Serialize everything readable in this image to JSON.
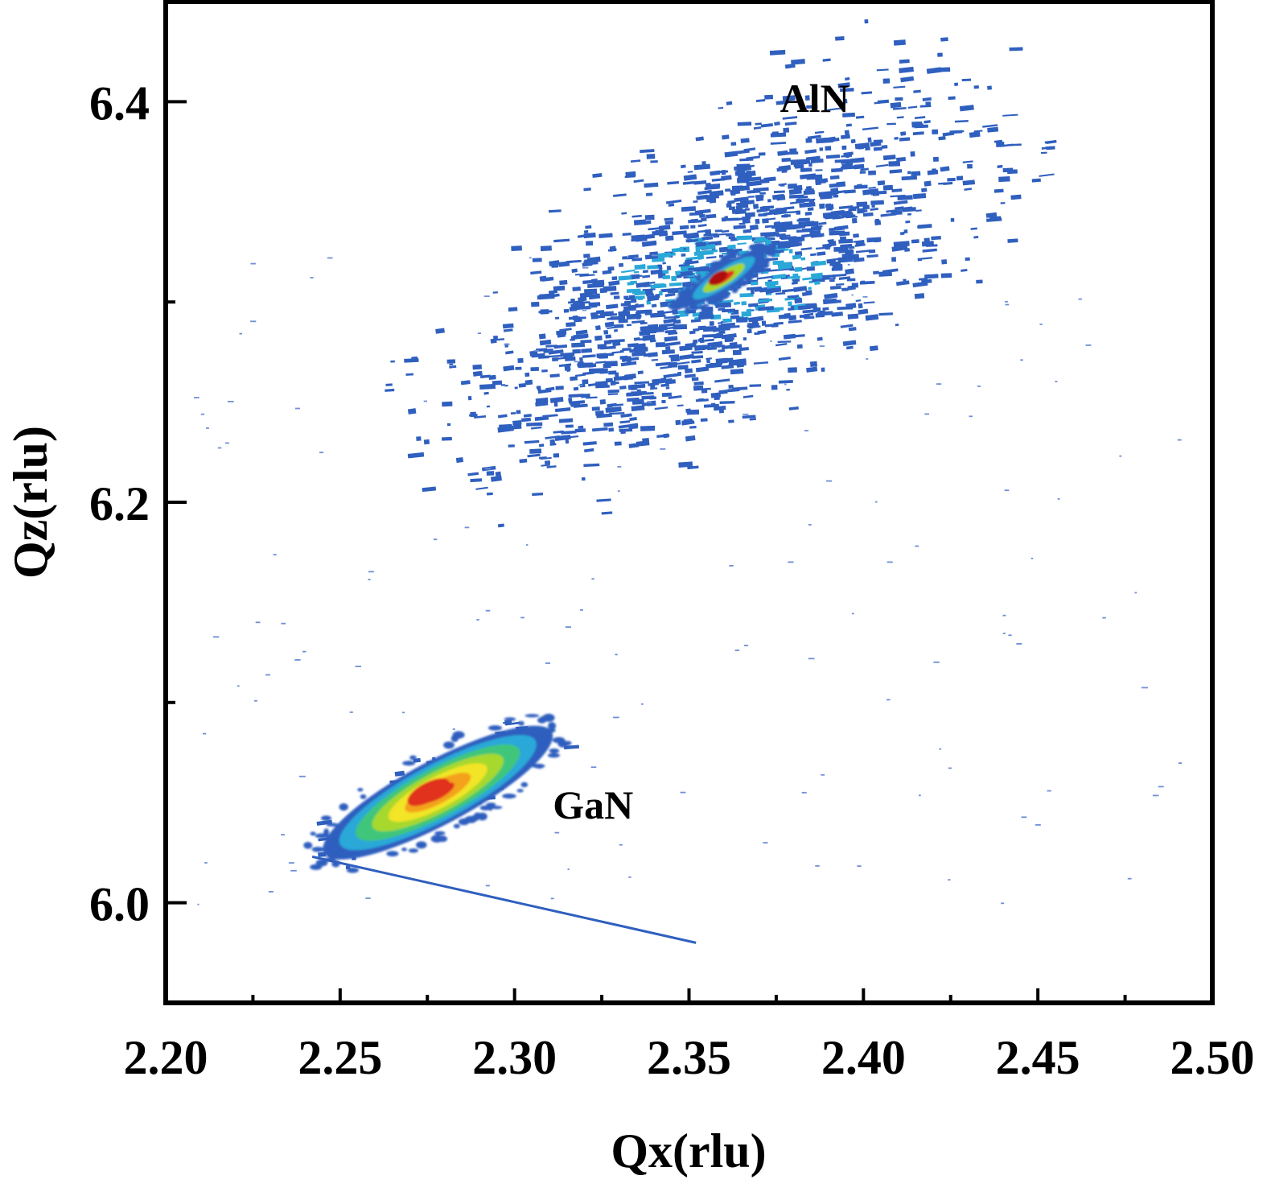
{
  "chart_data": {
    "type": "heatmap",
    "title": "",
    "xlabel": "Qx(rlu)",
    "ylabel": "Qz(rlu)",
    "xlim": [
      2.2,
      2.5
    ],
    "ylim": [
      5.95,
      6.45
    ],
    "x_ticks": [
      {
        "value": 2.2,
        "label": "2.20"
      },
      {
        "value": 2.25,
        "label": "2.25"
      },
      {
        "value": 2.3,
        "label": "2.30"
      },
      {
        "value": 2.35,
        "label": "2.35"
      },
      {
        "value": 2.4,
        "label": "2.40"
      },
      {
        "value": 2.45,
        "label": "2.45"
      },
      {
        "value": 2.5,
        "label": "2.50"
      }
    ],
    "x_minor_ticks": [
      2.225,
      2.275,
      2.325,
      2.375,
      2.425,
      2.475
    ],
    "y_ticks": [
      {
        "value": 6.0,
        "label": "6.0"
      },
      {
        "value": 6.2,
        "label": "6.2"
      },
      {
        "value": 6.4,
        "label": "6.4"
      }
    ],
    "y_minor_ticks": [
      6.1,
      6.3
    ],
    "colormap": [
      "#2f5fbf",
      "#2aa8d8",
      "#3fc67a",
      "#a6d82e",
      "#f2e428",
      "#f4a21c",
      "#e0311c",
      "#b01010"
    ],
    "peaks": [
      {
        "label": "AlN",
        "center": [
          2.36,
          6.312
        ],
        "tilt_deg": -33,
        "core_halfwidths": [
          0.014,
          0.006
        ],
        "core_levels": 4,
        "diffuse_halfwidths": [
          0.12,
          0.085
        ],
        "label_pos": [
          2.386,
          6.395
        ]
      },
      {
        "label": "GaN",
        "center": [
          2.278,
          6.055
        ],
        "tilt_deg": -28,
        "core_halfwidths": [
          0.037,
          0.016
        ],
        "core_levels": 7,
        "diffuse_halfwidths": [
          0.045,
          0.022
        ],
        "label_pos": [
          2.3225,
          6.042
        ]
      }
    ],
    "streak": {
      "from": [
        2.242,
        6.023
      ],
      "to": [
        2.352,
        5.98
      ]
    }
  }
}
